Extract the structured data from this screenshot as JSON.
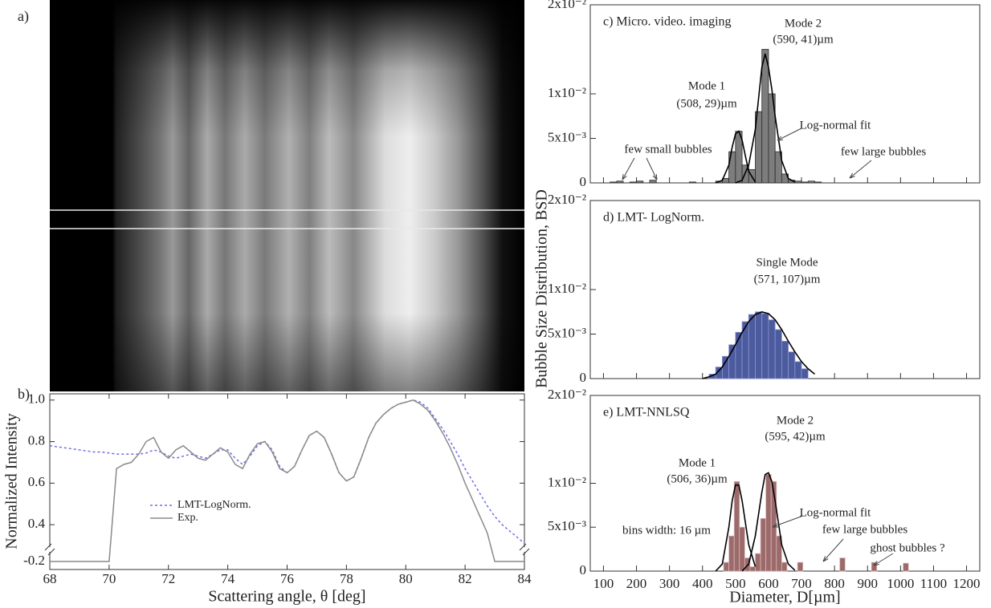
{
  "panel_a": {
    "label": "a)"
  },
  "chart_data": [
    {
      "type": "line",
      "title": "b)",
      "xlabel": "Scattering angle, θ [deg]",
      "ylabel": "Normalized Intensity",
      "xlim": [
        68,
        84
      ],
      "ylim": [
        -0.25,
        1.03
      ],
      "y_break": [
        -0.15,
        0.3
      ],
      "xticks": [
        68,
        70,
        72,
        74,
        76,
        78,
        80,
        82,
        84
      ],
      "yticks": [
        -0.2,
        0.4,
        0.6,
        0.8,
        {
          "value": 1,
          "label": "1.0"
        }
      ],
      "legend": "lower left",
      "x": [
        68,
        68.25,
        68.5,
        68.75,
        69,
        69.25,
        69.5,
        69.75,
        70,
        70.25,
        70.5,
        70.75,
        71,
        71.25,
        71.5,
        71.75,
        72,
        72.25,
        72.5,
        72.75,
        73,
        73.25,
        73.5,
        73.75,
        74,
        74.25,
        74.5,
        74.75,
        75,
        75.25,
        75.5,
        75.75,
        76,
        76.25,
        76.5,
        76.75,
        77,
        77.25,
        77.5,
        77.75,
        78,
        78.25,
        78.5,
        78.75,
        79,
        79.25,
        79.5,
        79.75,
        80,
        80.25,
        80.5,
        80.75,
        81,
        81.25,
        81.5,
        81.75,
        82,
        82.25,
        82.5,
        82.75,
        83,
        83.25,
        83.5,
        83.75,
        84
      ],
      "series": [
        {
          "name": "LMT-LogNorm.",
          "color": "#6f6fe8",
          "linestyle": "dashed",
          "values": [
            0.78,
            0.775,
            0.77,
            0.765,
            0.76,
            0.755,
            0.75,
            0.75,
            0.745,
            0.74,
            0.74,
            0.74,
            0.74,
            0.745,
            0.76,
            0.75,
            0.73,
            0.72,
            0.73,
            0.74,
            0.73,
            0.72,
            0.74,
            0.76,
            0.76,
            0.72,
            0.69,
            0.73,
            0.78,
            0.8,
            0.76,
            0.68,
            0.65,
            0.68,
            0.76,
            0.83,
            0.85,
            0.82,
            0.74,
            0.65,
            0.61,
            0.63,
            0.72,
            0.82,
            0.89,
            0.93,
            0.96,
            0.98,
            0.99,
            1.0,
            0.99,
            0.96,
            0.91,
            0.86,
            0.8,
            0.74,
            0.67,
            0.61,
            0.55,
            0.49,
            0.44,
            0.4,
            0.37,
            0.34,
            0.31
          ]
        },
        {
          "name": "Exp.",
          "color": "#8a8a8a",
          "linestyle": "solid",
          "values": [
            -0.2,
            -0.2,
            -0.2,
            -0.2,
            -0.2,
            -0.2,
            -0.2,
            -0.2,
            -0.2,
            0.67,
            0.69,
            0.7,
            0.74,
            0.8,
            0.82,
            0.75,
            0.72,
            0.76,
            0.78,
            0.75,
            0.72,
            0.71,
            0.74,
            0.77,
            0.75,
            0.69,
            0.67,
            0.74,
            0.79,
            0.8,
            0.75,
            0.67,
            0.65,
            0.68,
            0.76,
            0.83,
            0.85,
            0.82,
            0.74,
            0.65,
            0.61,
            0.63,
            0.72,
            0.82,
            0.89,
            0.93,
            0.96,
            0.98,
            0.99,
            1.0,
            0.98,
            0.95,
            0.9,
            0.84,
            0.77,
            0.69,
            0.6,
            0.52,
            0.44,
            0.36,
            -0.2,
            -0.2,
            -0.2,
            -0.2,
            -0.2
          ]
        }
      ]
    },
    {
      "type": "histogram",
      "title": "c) Micro. video. imaging",
      "color": "#7d7d7d",
      "edgecolor": "#2a2a2a",
      "xlim": [
        60,
        1240
      ],
      "ylim": [
        0,
        0.02
      ],
      "show_xtick_labels": false,
      "xticks": [
        100,
        200,
        300,
        400,
        500,
        600,
        700,
        800,
        900,
        1000,
        1100,
        1200
      ],
      "yticks": [
        0,
        {
          "value": 0.005,
          "label": "5x10⁻³"
        },
        {
          "value": 0.01,
          "label": "1x10⁻²"
        },
        {
          "value": 0.02,
          "label": "2x10⁻²"
        }
      ],
      "bins": [
        100,
        120,
        140,
        160,
        180,
        200,
        220,
        240,
        260,
        280,
        300,
        320,
        340,
        360,
        380,
        400,
        420,
        440,
        460,
        480,
        500,
        520,
        540,
        560,
        580,
        600,
        620,
        640,
        660,
        680,
        700,
        720,
        740,
        760,
        780,
        800
      ],
      "values": [
        0,
        0.0001,
        0.0002,
        0,
        0.0001,
        0.0002,
        0,
        0.0003,
        0,
        0,
        0,
        0,
        0,
        0.0001,
        0,
        0,
        0,
        0.0002,
        0.0005,
        0.0035,
        0.0058,
        0.002,
        0.0015,
        0.008,
        0.015,
        0.01,
        0.0035,
        0.001,
        0.0003,
        0.0002,
        0.0001,
        0.0002,
        0.0001,
        0,
        0
      ],
      "fits": [
        {
          "x": [
            440,
            460,
            480,
            490,
            500,
            510,
            520,
            530,
            540,
            560
          ],
          "values": [
            0,
            0.0003,
            0.002,
            0.004,
            0.0055,
            0.0058,
            0.0048,
            0.003,
            0.0013,
            0.0001
          ]
        },
        {
          "x": [
            500,
            520,
            540,
            560,
            570,
            580,
            590,
            600,
            610,
            620,
            640,
            660,
            680
          ],
          "values": [
            0,
            0.0003,
            0.002,
            0.006,
            0.0095,
            0.013,
            0.0145,
            0.013,
            0.0105,
            0.0075,
            0.0025,
            0.0005,
            0.0001
          ]
        }
      ],
      "annotations": [
        "Mode 2",
        "(590, 41)µm",
        "Mode 1",
        "(508, 29)µm",
        "Log-normal fit",
        "few small bubbles",
        "few large bubbles"
      ]
    },
    {
      "type": "histogram",
      "title": "d) LMT- LogNorm.",
      "ylabel": "Bubble Size Distribution, BSD",
      "color": "#4c5a9e",
      "edgecolor": "#8c96d0",
      "xlim": [
        60,
        1240
      ],
      "ylim": [
        0,
        0.02
      ],
      "show_xtick_labels": false,
      "xticks": [
        100,
        200,
        300,
        400,
        500,
        600,
        700,
        800,
        900,
        1000,
        1100,
        1200
      ],
      "yticks": [
        0,
        {
          "value": 0.005,
          "label": "5x10⁻³"
        },
        {
          "value": 0.01,
          "label": "1x10⁻²"
        },
        {
          "value": 0.02,
          "label": "2x10⁻²"
        }
      ],
      "bins": [
        420,
        440,
        460,
        480,
        500,
        520,
        540,
        560,
        580,
        600,
        620,
        640,
        660,
        680,
        700,
        720
      ],
      "values": [
        0.0005,
        0.0013,
        0.0025,
        0.0038,
        0.0052,
        0.0064,
        0.0072,
        0.0075,
        0.0073,
        0.0066,
        0.0055,
        0.0042,
        0.003,
        0.0019,
        0.0011
      ],
      "fits": [
        {
          "x": [
            400,
            420,
            440,
            460,
            480,
            500,
            520,
            540,
            560,
            580,
            600,
            620,
            640,
            660,
            680,
            700,
            720,
            740
          ],
          "values": [
            0,
            0.0002,
            0.0005,
            0.0013,
            0.0025,
            0.0038,
            0.0052,
            0.0064,
            0.0072,
            0.0075,
            0.0073,
            0.0066,
            0.0055,
            0.0042,
            0.003,
            0.0019,
            0.0011,
            0.0005
          ]
        }
      ],
      "annotations": [
        "Single Mode",
        "(571, 107)µm"
      ]
    },
    {
      "type": "histogram",
      "title": "e) LMT-NNLSQ",
      "xlabel": "Diameter, D[µm]",
      "color": "#9c6a6a",
      "edgecolor": "#d8b8b8",
      "xlim": [
        60,
        1240
      ],
      "ylim": [
        0,
        0.02
      ],
      "show_xtick_labels": true,
      "xticks": [
        100,
        200,
        300,
        400,
        500,
        600,
        700,
        800,
        900,
        1000,
        1100,
        1200
      ],
      "yticks": [
        0,
        {
          "value": 0.005,
          "label": "5x10⁻³"
        },
        {
          "value": 0.01,
          "label": "1x10⁻²"
        },
        {
          "value": 0.02,
          "label": "2x10⁻²"
        }
      ],
      "bins": [
        464,
        480,
        496,
        512,
        528,
        544,
        560,
        576,
        592,
        608,
        624,
        640,
        656,
        672,
        688,
        704,
        720,
        736,
        752,
        768,
        784,
        800,
        816,
        832,
        848,
        864,
        880,
        896,
        912,
        928,
        944,
        960,
        976,
        992,
        1008,
        1024
      ],
      "values": [
        0.001,
        0.004,
        0.0102,
        0.005,
        0.0015,
        0.0005,
        0.002,
        0.006,
        0.011,
        0.0102,
        0.004,
        0.001,
        0,
        0,
        0.001,
        0,
        0,
        0,
        0,
        0,
        0,
        0,
        0.0015,
        0,
        0,
        0,
        0,
        0,
        0.001,
        0,
        0,
        0,
        0,
        0,
        0.0009
      ],
      "fits": [
        {
          "x": [
            440,
            460,
            480,
            490,
            500,
            510,
            520,
            540,
            560
          ],
          "values": [
            0,
            0.0008,
            0.005,
            0.008,
            0.0098,
            0.0098,
            0.008,
            0.003,
            0.0005
          ]
        },
        {
          "x": [
            520,
            540,
            560,
            580,
            590,
            600,
            610,
            620,
            640,
            660,
            680
          ],
          "values": [
            0,
            0.0008,
            0.004,
            0.009,
            0.011,
            0.0112,
            0.0102,
            0.008,
            0.003,
            0.0008,
            0.0001
          ]
        }
      ],
      "annotations": [
        "Mode 2",
        "(595, 42)µm",
        "Mode 1",
        "(506, 36)µm",
        "Log-normal fit",
        "bins width: 16 µm",
        "few large bubbles",
        "ghost bubbles ?"
      ]
    }
  ]
}
